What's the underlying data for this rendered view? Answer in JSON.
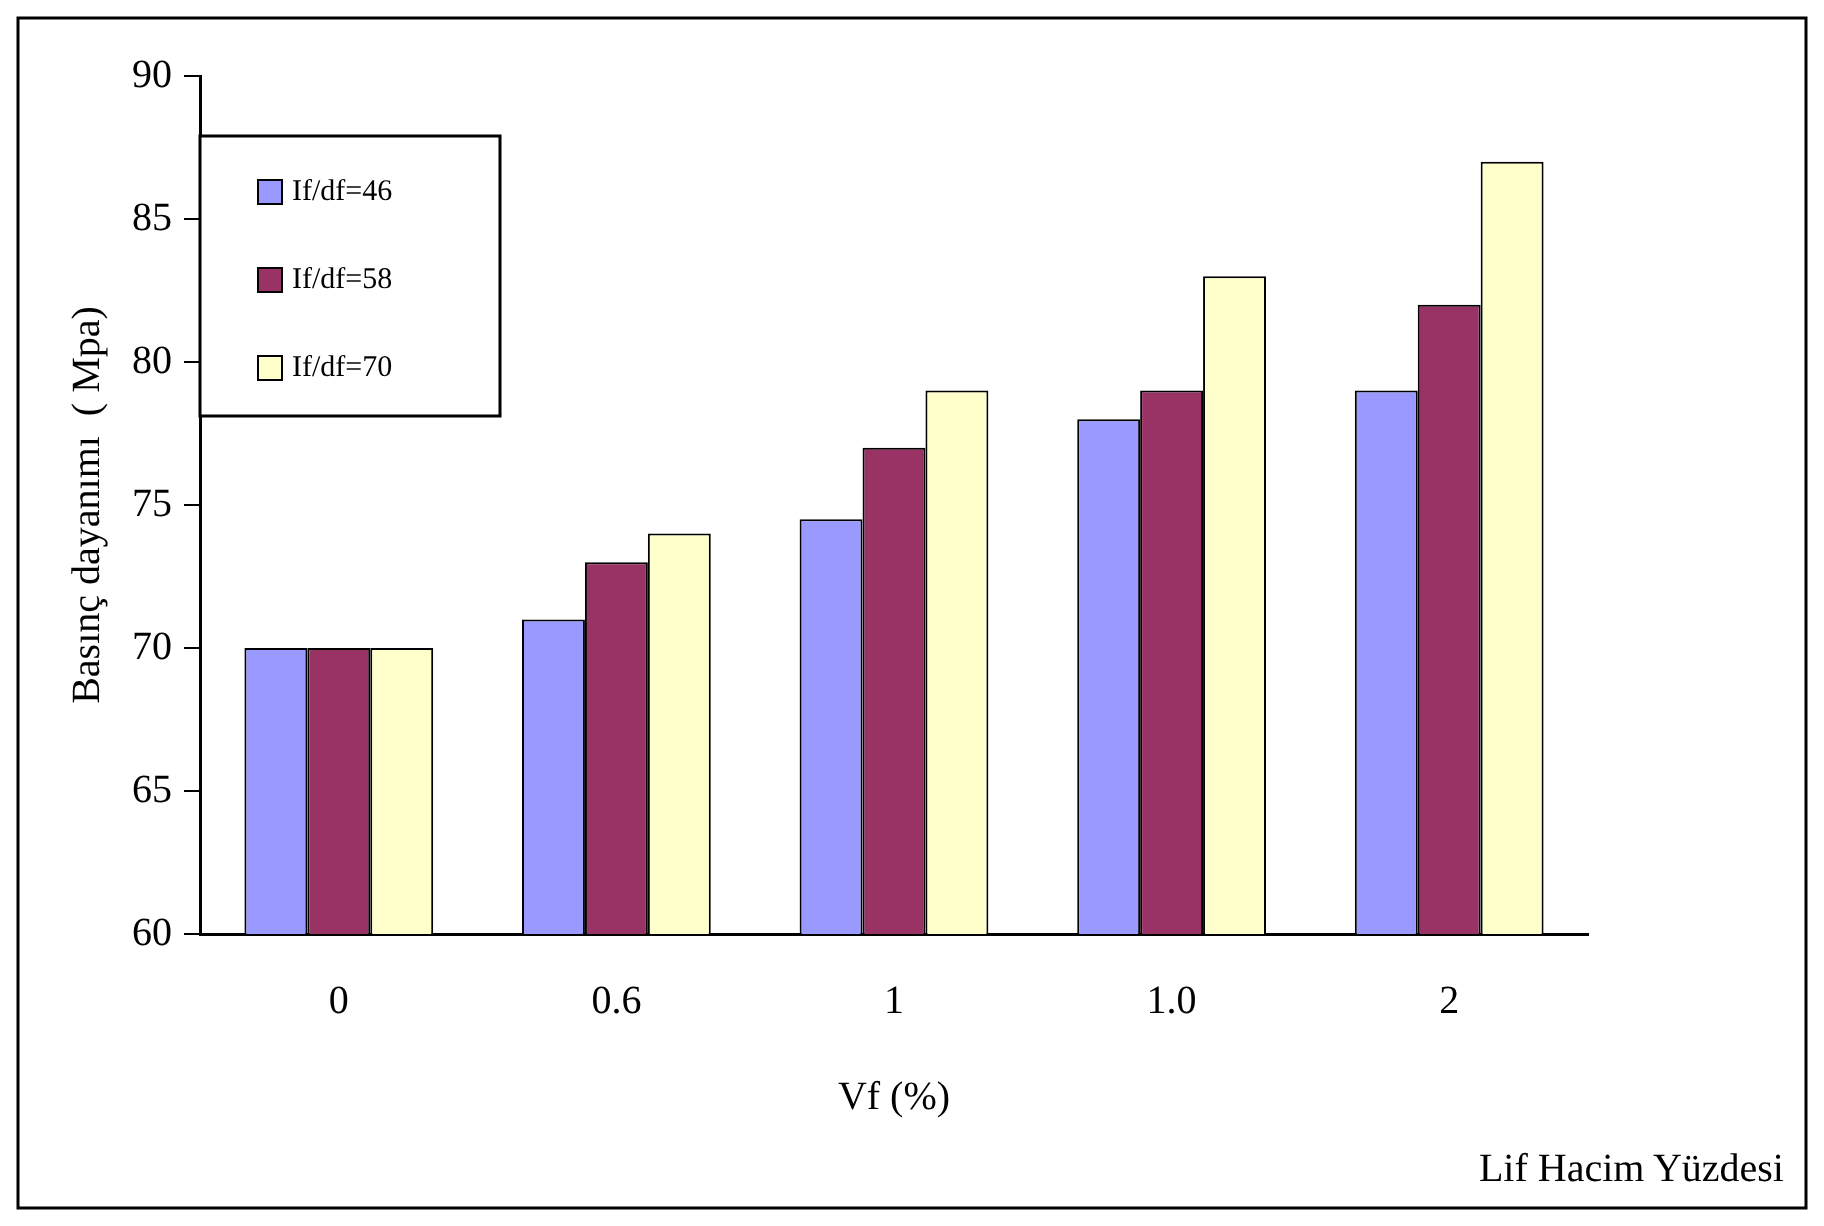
{
  "chart_data": {
    "type": "bar",
    "categories": [
      "0",
      "0.6",
      "1",
      "1.0",
      "2"
    ],
    "series": [
      {
        "name": "If/df=46",
        "color": "#9999ff",
        "values": [
          70,
          71,
          74.5,
          78,
          79
        ]
      },
      {
        "name": "If/df=58",
        "color": "#993366",
        "values": [
          70,
          73,
          77,
          79,
          82
        ]
      },
      {
        "name": "If/df=70",
        "color": "#ffffcc",
        "values": [
          70,
          74,
          79,
          83,
          87
        ]
      }
    ],
    "ylabel": "Basınç dayanımı  ( Mpa)",
    "xlabel": "Vf (%)",
    "annotations": [
      "Lif Hacim Yüzdesi"
    ],
    "ylim": [
      60,
      90
    ],
    "yticks": [
      60,
      65,
      70,
      75,
      80,
      85,
      90
    ],
    "grid": false,
    "legend": "top left"
  }
}
